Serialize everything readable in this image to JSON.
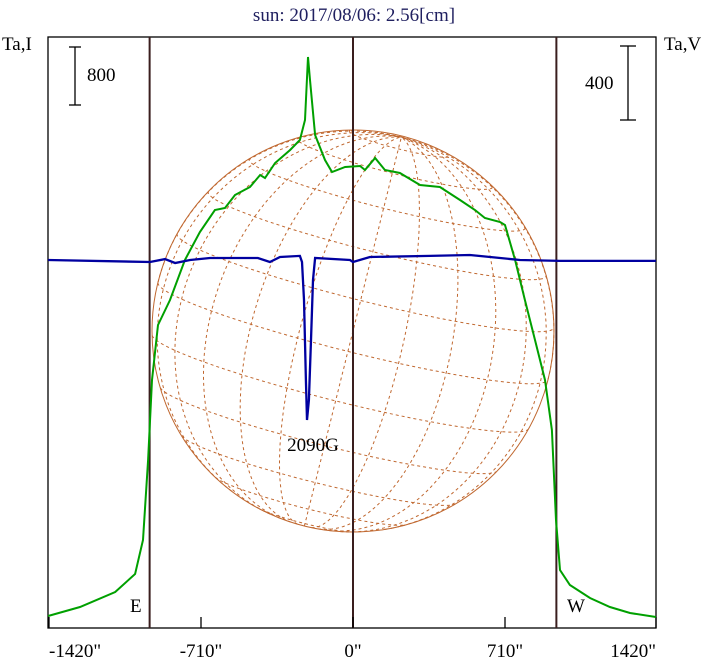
{
  "chart_data": {
    "type": "line",
    "title": "sun: 2017/08/06: 2.56[cm]",
    "left_axis_label": "Ta,I",
    "right_axis_label": "Ta,V",
    "left_scale_bar": "800",
    "right_scale_bar": "400",
    "left_scale_value": 800,
    "right_scale_value": 400,
    "xlim": [
      -1420,
      1420
    ],
    "x_ticks": [
      -1420,
      -710,
      0,
      710,
      1420
    ],
    "x_tick_labels": [
      "-1420\"",
      "-710\"",
      "0\"",
      "710\"",
      "1420\""
    ],
    "limb_lines": [
      -950,
      0,
      950
    ],
    "limb_labels": {
      "east": "E",
      "west": "W"
    },
    "annotation": {
      "text": "2090G",
      "x": -215
    },
    "colors": {
      "I": "#00a000",
      "V": "#0000a0",
      "title": "#202060",
      "grid": "#c06830",
      "frame": "#000000",
      "limb": "#3a1e1e"
    },
    "series": [
      {
        "name": "I",
        "color": "#00a000",
        "points": [
          [
            -1424,
            166
          ],
          [
            -1275,
            290
          ],
          [
            -1111,
            497
          ],
          [
            -1018,
            745
          ],
          [
            -981,
            1214
          ],
          [
            -957,
            2318
          ],
          [
            -939,
            3422
          ],
          [
            -911,
            4181
          ],
          [
            -855,
            4526
          ],
          [
            -785,
            5078
          ],
          [
            -715,
            5465
          ],
          [
            -645,
            5768
          ],
          [
            -598,
            5796
          ],
          [
            -551,
            5975
          ],
          [
            -481,
            6086
          ],
          [
            -434,
            6251
          ],
          [
            -411,
            6210
          ],
          [
            -364,
            6417
          ],
          [
            -294,
            6596
          ],
          [
            -248,
            6734
          ],
          [
            -224,
            7010
          ],
          [
            -210,
            7880
          ],
          [
            -201,
            7562
          ],
          [
            -177,
            6803
          ],
          [
            -131,
            6458
          ],
          [
            -98,
            6293
          ],
          [
            -37,
            6362
          ],
          [
            33,
            6376
          ],
          [
            56,
            6320
          ],
          [
            103,
            6486
          ],
          [
            149,
            6320
          ],
          [
            219,
            6279
          ],
          [
            313,
            6113
          ],
          [
            406,
            6086
          ],
          [
            500,
            5906
          ],
          [
            570,
            5768
          ],
          [
            616,
            5658
          ],
          [
            687,
            5603
          ],
          [
            710,
            5561
          ],
          [
            757,
            5078
          ],
          [
            803,
            4526
          ],
          [
            850,
            3974
          ],
          [
            897,
            3422
          ],
          [
            929,
            2732
          ],
          [
            948,
            1490
          ],
          [
            967,
            800
          ],
          [
            1013,
            593
          ],
          [
            1107,
            414
          ],
          [
            1200,
            290
          ],
          [
            1294,
            207
          ],
          [
            1415,
            152
          ]
        ]
      },
      {
        "name": "V",
        "color": "#0000a0",
        "points": [
          [
            -1424,
            0
          ],
          [
            -948,
            -11
          ],
          [
            -878,
            5
          ],
          [
            -831,
            -16
          ],
          [
            -761,
            0
          ],
          [
            -668,
            11
          ],
          [
            -444,
            11
          ],
          [
            -388,
            -11
          ],
          [
            -341,
            16
          ],
          [
            -248,
            22
          ],
          [
            -238,
            -11
          ],
          [
            -229,
            -216
          ],
          [
            -220,
            -648
          ],
          [
            -215,
            -864
          ],
          [
            -206,
            -756
          ],
          [
            -196,
            -432
          ],
          [
            -187,
            -108
          ],
          [
            -177,
            11
          ],
          [
            -14,
            0
          ],
          [
            0,
            -11
          ],
          [
            79,
            16
          ],
          [
            360,
            22
          ],
          [
            546,
            27
          ],
          [
            780,
            0
          ],
          [
            967,
            -5
          ],
          [
            1415,
            -5
          ]
        ]
      }
    ]
  }
}
